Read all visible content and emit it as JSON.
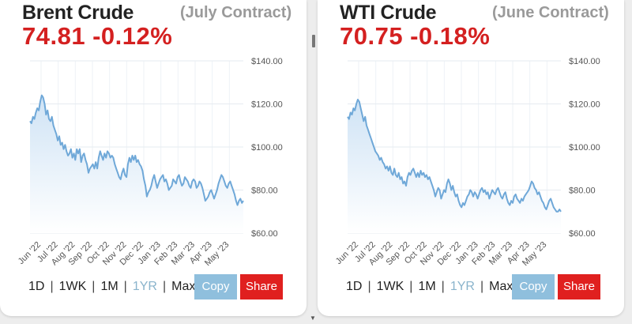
{
  "panels": [
    {
      "title": "Brent Crude",
      "contract": "(July Contract)",
      "price": "74.81",
      "change": "-0.12%",
      "colors": {
        "price": "#d42020",
        "line": "#6fa8d8",
        "fill": "#cfe3f5"
      },
      "controls": {
        "ranges": [
          "1D",
          "1WK",
          "1M",
          "1YR",
          "Max"
        ],
        "active": "1YR",
        "copy": "Copy",
        "share": "Share"
      },
      "chart_data": {
        "type": "area",
        "ylim": [
          60,
          140
        ],
        "yticks": [
          "$140.00",
          "$120.00",
          "$100.00",
          "$80.00",
          "$60.00"
        ],
        "xticks": [
          "Jun '22",
          "Jul '22",
          "Aug '22",
          "Sep '22",
          "Oct '22",
          "Nov '22",
          "Dec '22",
          "Jan '23",
          "Feb '23",
          "Mar '23",
          "Apr '23",
          "May '23"
        ],
        "grid": true,
        "values": [
          112,
          111,
          114,
          113,
          116,
          118,
          117,
          121,
          124,
          123,
          120,
          115,
          117,
          113,
          112,
          114,
          110,
          108,
          106,
          103,
          105,
          101,
          102,
          99,
          101,
          98,
          96,
          97,
          99,
          95,
          97,
          94,
          99,
          97,
          99,
          93,
          96,
          97,
          94,
          92,
          88,
          90,
          91,
          92,
          90,
          93,
          90,
          95,
          98,
          96,
          94,
          97,
          95,
          98,
          97,
          95,
          96,
          95,
          92,
          90,
          88,
          86,
          85,
          88,
          90,
          87,
          86,
          92,
          95,
          93,
          96,
          94,
          96,
          93,
          94,
          92,
          91,
          89,
          85,
          82,
          77,
          79,
          80,
          82,
          85,
          87,
          84,
          81,
          83,
          85,
          86,
          87,
          84,
          85,
          83,
          80,
          81,
          82,
          85,
          84,
          83,
          86,
          87,
          84,
          82,
          83,
          86,
          85,
          84,
          82,
          81,
          84,
          85,
          84,
          81,
          82,
          84,
          83,
          81,
          78,
          75,
          76,
          77,
          79,
          80,
          78,
          76,
          78,
          80,
          83,
          85,
          87,
          86,
          84,
          82,
          81,
          83,
          84,
          82,
          80,
          78,
          75,
          73,
          75,
          76,
          74,
          75
        ]
      }
    },
    {
      "title": "WTI Crude",
      "contract": "(June Contract)",
      "price": "70.75",
      "change": "-0.18%",
      "colors": {
        "price": "#d42020",
        "line": "#6fa8d8",
        "fill": "#cfe3f5"
      },
      "controls": {
        "ranges": [
          "1D",
          "1WK",
          "1M",
          "1YR",
          "Max"
        ],
        "active": "1YR",
        "copy": "Copy",
        "share": "Share"
      },
      "chart_data": {
        "type": "area",
        "ylim": [
          60,
          140
        ],
        "yticks": [
          "$140.00",
          "$120.00",
          "$100.00",
          "$80.00",
          "$60.00"
        ],
        "xticks": [
          "Jun '22",
          "Jul '22",
          "Aug '22",
          "Sep '22",
          "Oct '22",
          "Nov '22",
          "Dec '22",
          "Jan '23",
          "Feb '23",
          "Mar '23",
          "Apr '23",
          "May '23"
        ],
        "grid": true,
        "values": [
          114,
          113,
          116,
          115,
          118,
          117,
          120,
          122,
          121,
          118,
          115,
          112,
          114,
          110,
          108,
          106,
          104,
          102,
          100,
          98,
          97,
          96,
          94,
          95,
          93,
          92,
          90,
          91,
          89,
          91,
          88,
          87,
          90,
          87,
          86,
          88,
          85,
          86,
          83,
          84,
          82,
          86,
          88,
          87,
          89,
          90,
          88,
          86,
          88,
          86,
          89,
          87,
          88,
          86,
          87,
          85,
          86,
          84,
          82,
          80,
          77,
          79,
          81,
          80,
          76,
          78,
          80,
          79,
          83,
          85,
          83,
          80,
          82,
          79,
          77,
          78,
          75,
          73,
          72,
          74,
          73,
          75,
          77,
          78,
          80,
          79,
          77,
          79,
          78,
          76,
          78,
          80,
          81,
          79,
          80,
          78,
          79,
          76,
          78,
          80,
          79,
          78,
          80,
          81,
          79,
          77,
          76,
          78,
          79,
          76,
          74,
          73,
          75,
          74,
          77,
          78,
          76,
          75,
          74,
          76,
          75,
          77,
          78,
          79,
          80,
          82,
          84,
          83,
          81,
          80,
          78,
          79,
          77,
          75,
          74,
          72,
          71,
          73,
          75,
          76,
          74,
          72,
          71,
          70,
          70,
          71,
          70
        ]
      }
    }
  ]
}
